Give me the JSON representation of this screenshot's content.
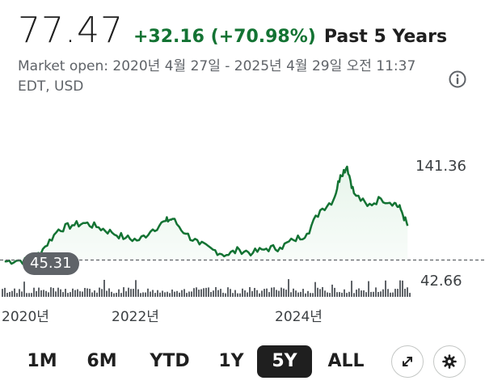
{
  "quote": {
    "price": "77.47",
    "change": "+32.16 (+70.98%)",
    "period": "Past 5 Years",
    "market_info": "Market open: 2020년 4월 27일 - 2025년 4월 29일 오전 11:37 EDT, USD"
  },
  "chart": {
    "high_label": "141.36",
    "low_label": "42.66",
    "baseline_label": "45.31",
    "x_labels": [
      "2020년",
      "2022년",
      "2024년"
    ]
  },
  "chart_data": {
    "type": "area",
    "xlabel": "",
    "ylabel": "",
    "x_ticks": [
      "2020년",
      "2022년",
      "2024년"
    ],
    "ylim": [
      42.66,
      141.36
    ],
    "baseline": 45.31,
    "points": [
      [
        "2020-04",
        44
      ],
      [
        "2020-06",
        45
      ],
      [
        "2020-08",
        44
      ],
      [
        "2020-10",
        58
      ],
      [
        "2020-12",
        74
      ],
      [
        "2021-02",
        78
      ],
      [
        "2021-04",
        80
      ],
      [
        "2021-06",
        76
      ],
      [
        "2021-08",
        71
      ],
      [
        "2021-10",
        66
      ],
      [
        "2021-12",
        64
      ],
      [
        "2022-02",
        74
      ],
      [
        "2022-04",
        82
      ],
      [
        "2022-05",
        84
      ],
      [
        "2022-07",
        70
      ],
      [
        "2022-09",
        60
      ],
      [
        "2022-11",
        55
      ],
      [
        "2023-01",
        50
      ],
      [
        "2023-03",
        55
      ],
      [
        "2023-05",
        52
      ],
      [
        "2023-07",
        56
      ],
      [
        "2023-09",
        57
      ],
      [
        "2023-11",
        64
      ],
      [
        "2024-01",
        70
      ],
      [
        "2024-03",
        92
      ],
      [
        "2024-05",
        102
      ],
      [
        "2024-06",
        125
      ],
      [
        "2024-07",
        133
      ],
      [
        "2024-08",
        108
      ],
      [
        "2024-10",
        96
      ],
      [
        "2024-12",
        103
      ],
      [
        "2025-02",
        99
      ],
      [
        "2025-03",
        93
      ],
      [
        "2025-04",
        77.47
      ]
    ],
    "grid": false,
    "legend": "none"
  },
  "range_buttons": [
    "1M",
    "6M",
    "YTD",
    "1Y",
    "5Y",
    "ALL"
  ],
  "selected_range": "5Y",
  "icons": {
    "info": "info-icon",
    "expand": "expand-icon",
    "settings": "gear-icon"
  },
  "colors": {
    "line": "#137333",
    "fill": "#e6f4ea",
    "positive_change": "#137333",
    "selected_range_bg": "#1f1f1f",
    "volume": "#5f6368"
  }
}
